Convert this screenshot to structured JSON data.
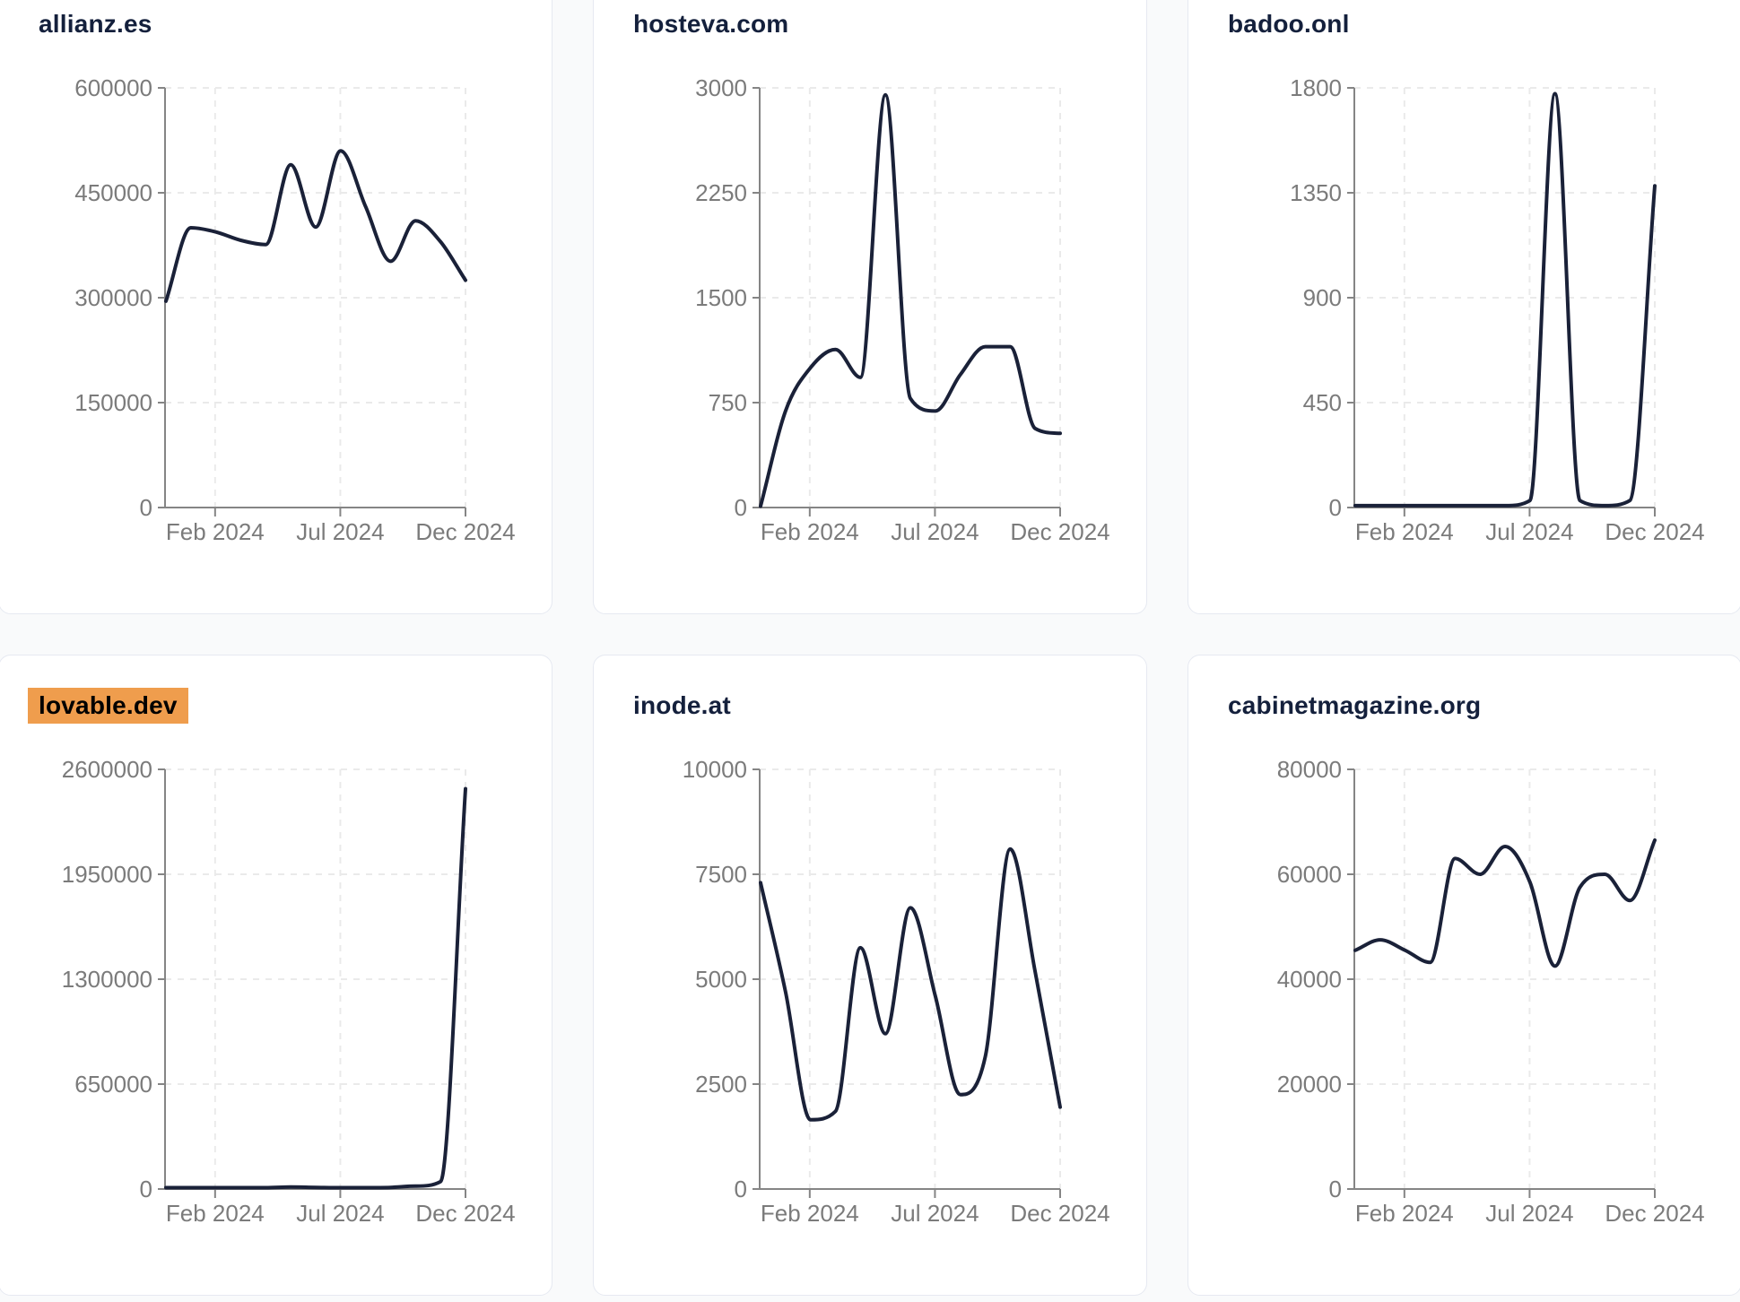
{
  "page": {
    "background": "#f9fafb"
  },
  "colors": {
    "line": "#1a2138",
    "title": "#14203c",
    "highlight_bg": "#ef9d4d",
    "highlight_text": "#000000",
    "axis": "#858585",
    "tick_label": "#7b7b7b",
    "grid": "#eaeaea",
    "card_border": "#e6e9f1",
    "card_bg": "#ffffff"
  },
  "x_months": [
    "Dec 2023",
    "Jan 2024",
    "Feb 2024",
    "Mar 2024",
    "Apr 2024",
    "May 2024",
    "Jun 2024",
    "Jul 2024",
    "Aug 2024",
    "Sep 2024",
    "Oct 2024",
    "Nov 2024",
    "Dec 2024"
  ],
  "chart_data": [
    {
      "type": "line",
      "title": "allianz.es",
      "title_highlighted": false,
      "x": [
        "Dec 2023",
        "Jan 2024",
        "Feb 2024",
        "Mar 2024",
        "Apr 2024",
        "May 2024",
        "Jun 2024",
        "Jul 2024",
        "Aug 2024",
        "Sep 2024",
        "Oct 2024",
        "Nov 2024",
        "Dec 2024"
      ],
      "values": [
        295000,
        400000,
        394000,
        382000,
        376000,
        490000,
        401000,
        510000,
        430000,
        352000,
        410000,
        380000,
        325000
      ],
      "y_ticks": [
        0,
        150000,
        300000,
        450000,
        600000
      ],
      "ylim": [
        0,
        600000
      ],
      "x_tick_labels": [
        "Feb 2024",
        "Jul 2024",
        "Dec 2024"
      ],
      "x_tick_indices": [
        2,
        7,
        12
      ],
      "grid": "dashed",
      "legend": "none"
    },
    {
      "type": "line",
      "title": "hosteva.com",
      "title_highlighted": false,
      "x": [
        "Dec 2023",
        "Jan 2024",
        "Feb 2024",
        "Mar 2024",
        "Apr 2024",
        "May 2024",
        "Jun 2024",
        "Jul 2024",
        "Aug 2024",
        "Sep 2024",
        "Oct 2024",
        "Nov 2024",
        "Dec 2024"
      ],
      "values": [
        0,
        690,
        1000,
        1130,
        930,
        2950,
        780,
        690,
        950,
        1150,
        1150,
        565,
        530
      ],
      "y_ticks": [
        0,
        750,
        1500,
        2250,
        3000
      ],
      "ylim": [
        0,
        3000
      ],
      "x_tick_labels": [
        "Feb 2024",
        "Jul 2024",
        "Dec 2024"
      ],
      "x_tick_indices": [
        2,
        7,
        12
      ],
      "grid": "dashed",
      "legend": "none"
    },
    {
      "type": "line",
      "title": "badoo.onl",
      "title_highlighted": false,
      "x": [
        "Dec 2023",
        "Jan 2024",
        "Feb 2024",
        "Mar 2024",
        "Apr 2024",
        "May 2024",
        "Jun 2024",
        "Jul 2024",
        "Aug 2024",
        "Sep 2024",
        "Oct 2024",
        "Nov 2024",
        "Dec 2024"
      ],
      "values": [
        8,
        8,
        8,
        8,
        8,
        8,
        8,
        30,
        1775,
        30,
        8,
        30,
        1380
      ],
      "y_ticks": [
        0,
        450,
        900,
        1350,
        1800
      ],
      "ylim": [
        0,
        1800
      ],
      "x_tick_labels": [
        "Feb 2024",
        "Jul 2024",
        "Dec 2024"
      ],
      "x_tick_indices": [
        2,
        7,
        12
      ],
      "grid": "dashed",
      "legend": "none"
    },
    {
      "type": "line",
      "title": "lovable.dev",
      "title_highlighted": true,
      "x": [
        "Dec 2023",
        "Jan 2024",
        "Feb 2024",
        "Mar 2024",
        "Apr 2024",
        "May 2024",
        "Jun 2024",
        "Jul 2024",
        "Aug 2024",
        "Sep 2024",
        "Oct 2024",
        "Nov 2024",
        "Dec 2024"
      ],
      "values": [
        3000,
        2000,
        2500,
        2000,
        3000,
        12000,
        10000,
        8000,
        7000,
        10000,
        18000,
        46000,
        2480000
      ],
      "y_ticks": [
        0,
        650000,
        1300000,
        1950000,
        2600000
      ],
      "ylim": [
        0,
        2600000
      ],
      "x_tick_labels": [
        "Feb 2024",
        "Jul 2024",
        "Dec 2024"
      ],
      "x_tick_indices": [
        2,
        7,
        12
      ],
      "grid": "dashed",
      "legend": "none"
    },
    {
      "type": "line",
      "title": "inode.at",
      "title_highlighted": false,
      "x": [
        "Dec 2023",
        "Jan 2024",
        "Feb 2024",
        "Mar 2024",
        "Apr 2024",
        "May 2024",
        "Jun 2024",
        "Jul 2024",
        "Aug 2024",
        "Sep 2024",
        "Oct 2024",
        "Nov 2024",
        "Dec 2024"
      ],
      "values": [
        7300,
        4700,
        1650,
        1850,
        5750,
        3700,
        6700,
        4600,
        2250,
        3150,
        8100,
        5170,
        1950
      ],
      "y_ticks": [
        0,
        2500,
        5000,
        7500,
        10000
      ],
      "ylim": [
        0,
        10000
      ],
      "x_tick_labels": [
        "Feb 2024",
        "Jul 2024",
        "Dec 2024"
      ],
      "x_tick_indices": [
        2,
        7,
        12
      ],
      "grid": "dashed",
      "legend": "none"
    },
    {
      "type": "line",
      "title": "cabinetmagazine.org",
      "title_highlighted": false,
      "x": [
        "Dec 2023",
        "Jan 2024",
        "Feb 2024",
        "Mar 2024",
        "Apr 2024",
        "May 2024",
        "Jun 2024",
        "Jul 2024",
        "Aug 2024",
        "Sep 2024",
        "Oct 2024",
        "Nov 2024",
        "Dec 2024"
      ],
      "values": [
        45500,
        47500,
        45500,
        43200,
        63000,
        60000,
        65300,
        58500,
        42500,
        57500,
        60000,
        55000,
        66500
      ],
      "y_ticks": [
        0,
        20000,
        40000,
        60000,
        80000
      ],
      "ylim": [
        0,
        80000
      ],
      "x_tick_labels": [
        "Feb 2024",
        "Jul 2024",
        "Dec 2024"
      ],
      "x_tick_indices": [
        2,
        7,
        12
      ],
      "grid": "dashed",
      "legend": "none"
    }
  ]
}
